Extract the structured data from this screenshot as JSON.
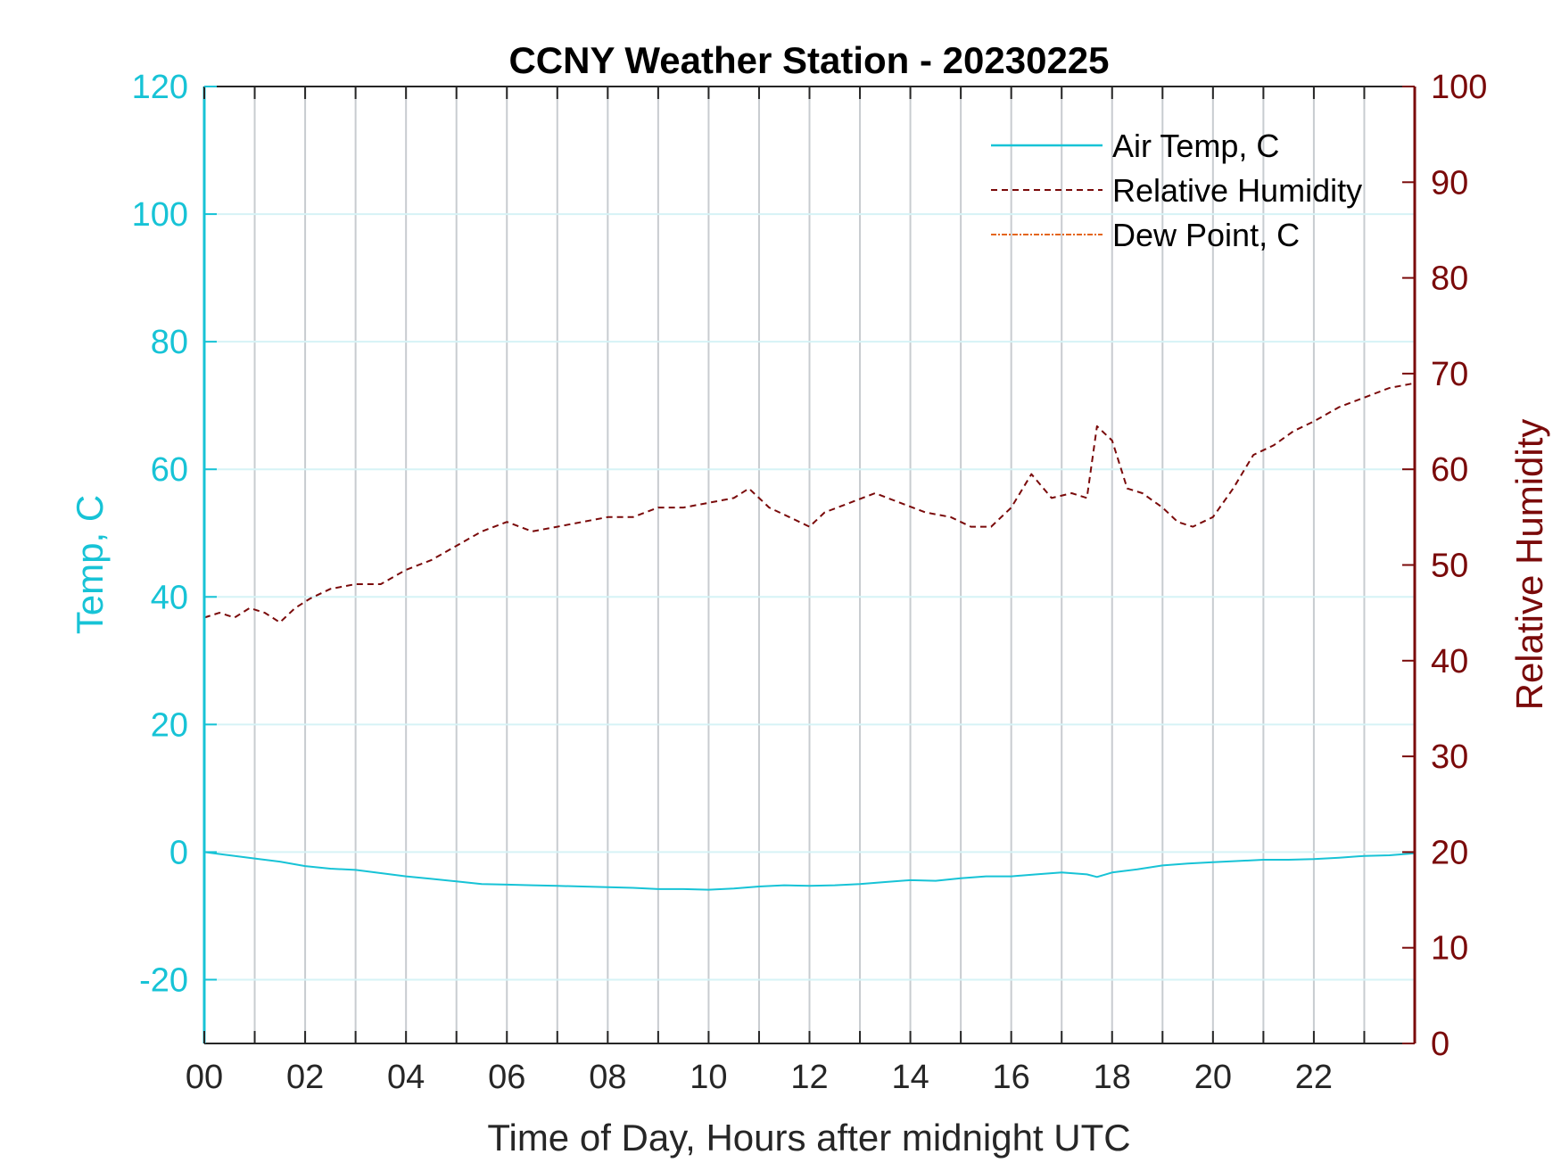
{
  "chart_data": {
    "type": "line",
    "title": "CCNY Weather Station - 20230225",
    "xlabel": "Time of Day, Hours after midnight UTC",
    "ylabel_left": "Temp, C",
    "ylabel_right": "Relative Humidity",
    "xlim": [
      0,
      24
    ],
    "ylim_left": [
      -30,
      120
    ],
    "ylim_right": [
      0,
      100
    ],
    "x_ticks": [
      0,
      2,
      4,
      6,
      8,
      10,
      12,
      14,
      16,
      18,
      20,
      22
    ],
    "x_tick_labels": [
      "00",
      "02",
      "04",
      "06",
      "08",
      "10",
      "12",
      "14",
      "16",
      "18",
      "20",
      "22"
    ],
    "y_left_ticks": [
      -20,
      0,
      20,
      40,
      60,
      80,
      100,
      120
    ],
    "y_left_tick_labels": [
      "-20",
      "0",
      "20",
      "40",
      "60",
      "80",
      "100",
      "120"
    ],
    "y_right_ticks": [
      0,
      10,
      20,
      30,
      40,
      50,
      60,
      70,
      80,
      90,
      100
    ],
    "y_right_tick_labels": [
      "0",
      "10",
      "20",
      "30",
      "40",
      "50",
      "60",
      "70",
      "80",
      "90",
      "100"
    ],
    "grid": "on",
    "legend_position": "top-right",
    "colors": {
      "air_temp": "#17c3d6",
      "humidity": "#7a0a0a",
      "dew_point": "#e4661c",
      "grid_vertical": "#c8ccd0",
      "grid_horizontal": "#d6f3f6"
    },
    "series": [
      {
        "name": "Air Temp, C",
        "axis": "left",
        "style": "solid",
        "x": [
          0,
          0.5,
          1,
          1.5,
          2,
          2.5,
          3,
          3.5,
          4,
          4.5,
          5,
          5.5,
          6,
          6.5,
          7,
          7.5,
          8,
          8.5,
          9,
          9.5,
          10,
          10.5,
          11,
          11.5,
          12,
          12.5,
          13,
          13.5,
          14,
          14.5,
          15,
          15.5,
          16,
          16.5,
          17,
          17.5,
          17.7,
          18,
          18.5,
          19,
          19.5,
          20,
          20.5,
          21,
          21.5,
          22,
          22.5,
          23,
          23.5,
          24
        ],
        "y": [
          0,
          -0.5,
          -1,
          -1.5,
          -2.2,
          -2.6,
          -2.8,
          -3.3,
          -3.8,
          -4.2,
          -4.6,
          -5,
          -5.1,
          -5.2,
          -5.3,
          -5.4,
          -5.5,
          -5.6,
          -5.8,
          -5.8,
          -5.9,
          -5.7,
          -5.4,
          -5.2,
          -5.3,
          -5.2,
          -5,
          -4.7,
          -4.4,
          -4.5,
          -4.1,
          -3.8,
          -3.8,
          -3.5,
          -3.2,
          -3.5,
          -3.9,
          -3.2,
          -2.7,
          -2.1,
          -1.8,
          -1.6,
          -1.4,
          -1.2,
          -1.2,
          -1.1,
          -0.9,
          -0.6,
          -0.5,
          -0.2
        ]
      },
      {
        "name": "Relative Humidity",
        "axis": "right",
        "style": "dashed",
        "x": [
          0,
          0.3,
          0.6,
          0.9,
          1.2,
          1.5,
          1.8,
          2.1,
          2.5,
          3,
          3.5,
          4,
          4.5,
          5,
          5.5,
          6,
          6.5,
          7,
          7.5,
          8,
          8.5,
          9,
          9.5,
          10,
          10.5,
          10.8,
          11.2,
          11.6,
          12,
          12.3,
          12.8,
          13.3,
          13.8,
          14.3,
          14.8,
          15.2,
          15.6,
          16,
          16.4,
          16.8,
          17.2,
          17.5,
          17.7,
          18,
          18.3,
          18.6,
          19,
          19.3,
          19.6,
          20,
          20.4,
          20.8,
          21.2,
          21.6,
          22,
          22.5,
          23,
          23.5,
          24
        ],
        "y": [
          44.5,
          45,
          44.5,
          45.5,
          45,
          44,
          45.5,
          46.5,
          47.5,
          48,
          48,
          49.5,
          50.5,
          52,
          53.5,
          54.5,
          53.5,
          54,
          54.5,
          55,
          55,
          56,
          56,
          56.5,
          57,
          58,
          56,
          55,
          54,
          55.5,
          56.5,
          57.5,
          56.5,
          55.5,
          55,
          54,
          54,
          56,
          59.5,
          57,
          57.5,
          57,
          64.5,
          63,
          58,
          57.5,
          56,
          54.5,
          54,
          55,
          58,
          61.5,
          62.5,
          64,
          65,
          66.5,
          67.5,
          68.5,
          69
        ]
      },
      {
        "name": "Dew Point, C",
        "axis": "left",
        "style": "dashdot",
        "x": [],
        "y": []
      }
    ]
  }
}
